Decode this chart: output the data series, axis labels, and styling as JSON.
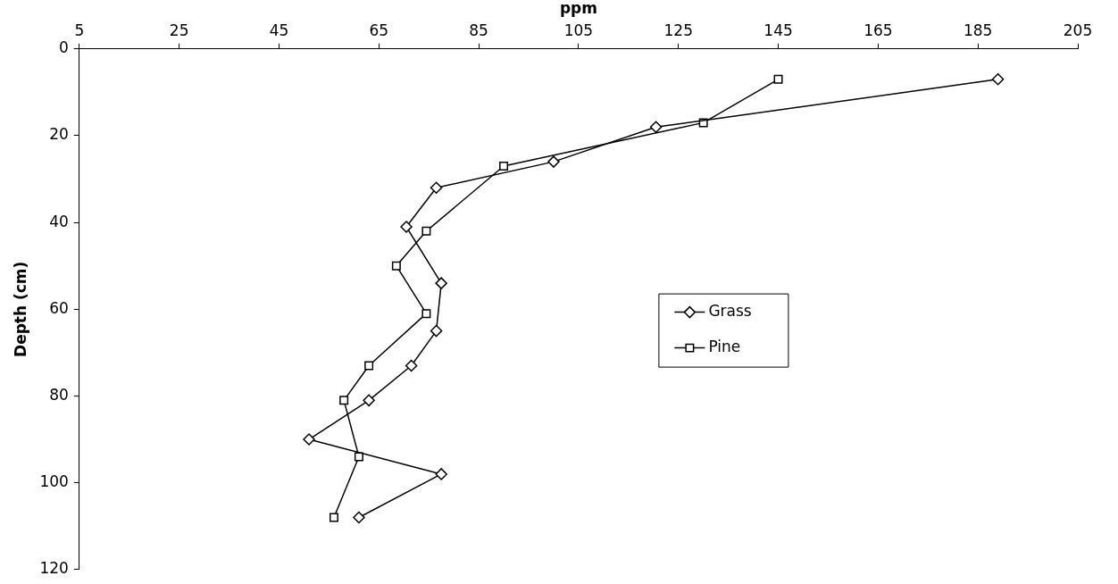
{
  "chart_data": {
    "type": "line",
    "xlabel": "ppm",
    "ylabel": "Depth (cm)",
    "xlim": [
      5,
      205
    ],
    "xticks": [
      5,
      25,
      45,
      65,
      85,
      105,
      125,
      145,
      165,
      185,
      205
    ],
    "ylim": [
      120,
      0
    ],
    "yticks": [
      0,
      20,
      40,
      60,
      80,
      100,
      120
    ],
    "grid": false,
    "legend": "right",
    "series": [
      {
        "name": "Grass",
        "color": "#000000",
        "marker": "diamond",
        "x": [
          189,
          120.5,
          100,
          76.5,
          70.5,
          77.5,
          76.5,
          71.5,
          63,
          51,
          77.5,
          61
        ],
        "values": [
          7,
          18,
          26,
          32,
          41,
          54,
          65,
          73,
          81,
          90,
          98,
          108
        ]
      },
      {
        "name": "Pine",
        "color": "#000000",
        "marker": "square",
        "x": [
          145,
          130,
          90,
          74.5,
          68.5,
          74.5,
          63,
          58,
          61,
          56,
          null,
          null
        ],
        "values": [
          7,
          17,
          27,
          42,
          50,
          61,
          73,
          81,
          94,
          108,
          null,
          null
        ]
      }
    ]
  }
}
